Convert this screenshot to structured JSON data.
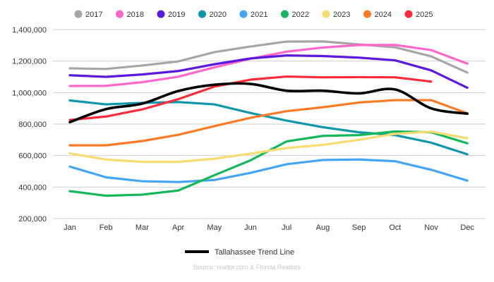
{
  "chart_data": {
    "type": "line",
    "title": "",
    "xlabel": "",
    "ylabel": "",
    "categories": [
      "Jan",
      "Feb",
      "Mar",
      "Apr",
      "May",
      "Jun",
      "Jul",
      "Aug",
      "Sep",
      "Oct",
      "Nov",
      "Dec"
    ],
    "ylim": [
      200000,
      1400000
    ],
    "yticks": [
      200000,
      400000,
      600000,
      800000,
      1000000,
      1200000,
      1400000
    ],
    "ytick_labels": [
      "200,000",
      "400,000",
      "600,000",
      "800,000",
      "1,000,000",
      "1,200,000",
      "1,400,000"
    ],
    "grid": true,
    "legend_position": "top",
    "series": [
      {
        "name": "2017",
        "color": "#a6a6a6",
        "values": [
          1154000,
          1150000,
          1172000,
          1198000,
          1257000,
          1293000,
          1324000,
          1325000,
          1306000,
          1288000,
          1230000,
          1127000
        ]
      },
      {
        "name": "2018",
        "color": "#ff66cc",
        "values": [
          1042000,
          1043000,
          1066000,
          1101000,
          1160000,
          1215000,
          1260000,
          1286000,
          1302000,
          1303000,
          1270000,
          1184000
        ]
      },
      {
        "name": "2019",
        "color": "#5b18e0",
        "values": [
          1110000,
          1100000,
          1115000,
          1137000,
          1180000,
          1217000,
          1236000,
          1232000,
          1222000,
          1205000,
          1141000,
          1031000
        ]
      },
      {
        "name": "2020",
        "color": "#0e97a8",
        "values": [
          950000,
          925000,
          935000,
          940000,
          925000,
          870000,
          822000,
          780000,
          748000,
          730000,
          682000,
          608000
        ]
      },
      {
        "name": "2021",
        "color": "#42a5f5",
        "values": [
          530000,
          462000,
          437000,
          432000,
          445000,
          490000,
          545000,
          572000,
          575000,
          564000,
          510000,
          441000
        ]
      },
      {
        "name": "2022",
        "color": "#12b85a",
        "values": [
          374000,
          345000,
          352000,
          378000,
          475000,
          570000,
          690000,
          725000,
          730000,
          753000,
          748000,
          678000
        ]
      },
      {
        "name": "2023",
        "color": "#f7dc6f",
        "values": [
          614000,
          575000,
          560000,
          560000,
          580000,
          612000,
          648000,
          668000,
          700000,
          738000,
          752000,
          710000
        ]
      },
      {
        "name": "2024",
        "color": "#ff7a22",
        "values": [
          665000,
          665000,
          692000,
          732000,
          787000,
          840000,
          882000,
          907000,
          937000,
          952000,
          952000,
          868000
        ]
      },
      {
        "name": "2025",
        "color": "#ff2a3a",
        "values": [
          826000,
          848000,
          893000,
          958000,
          1038000,
          1082000,
          1102000,
          1097000,
          1098000,
          1097000,
          1070000,
          null
        ]
      }
    ],
    "trend": {
      "name": "Tallahassee Trend Line",
      "color": "#000000",
      "values": [
        812000,
        895000,
        930000,
        1010000,
        1050000,
        1055000,
        1012000,
        1012000,
        995000,
        1020000,
        900000,
        866000
      ]
    },
    "source": "Source: realtor.com & Florida Realtors"
  }
}
